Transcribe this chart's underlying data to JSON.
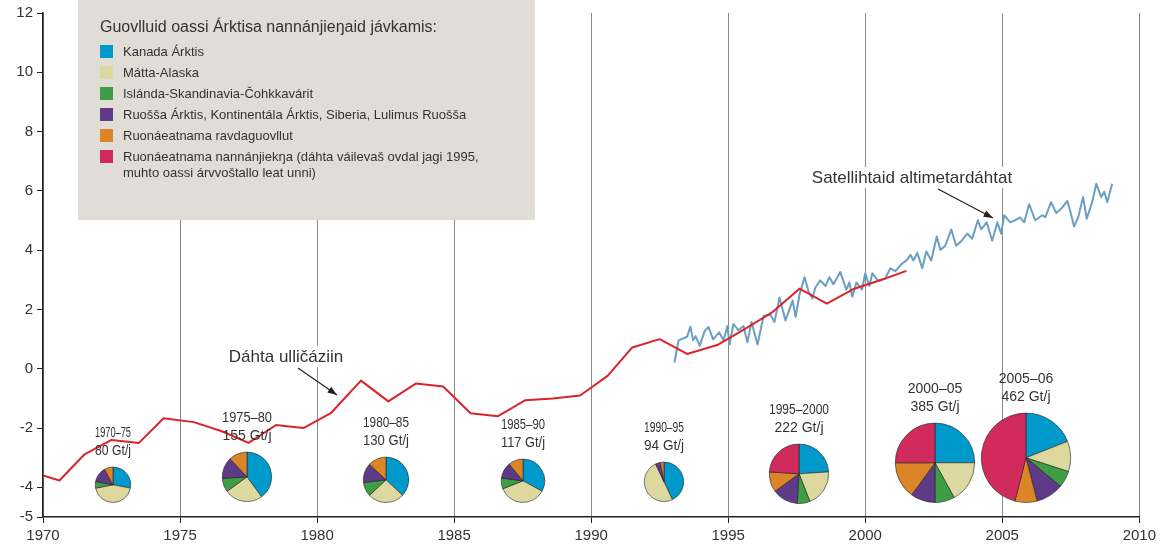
{
  "chart_data": [
    {
      "type": "line",
      "xlim": [
        1970,
        2010
      ],
      "xticks": [
        1970,
        1975,
        1980,
        1985,
        1990,
        1995,
        2000,
        2005,
        2010
      ],
      "ylim": [
        -5,
        12
      ],
      "yticks": [
        -5,
        -4,
        -2,
        0,
        2,
        4,
        6,
        8,
        10,
        12
      ],
      "grid": "x",
      "marker": "none",
      "line_style": "solid",
      "annotations": [
        "Dáhta ulličáziin",
        "Satellihtaid altimetardáhtat"
      ],
      "series": [
        {
          "color": "#d9242b",
          "x": [
            1970,
            1970.6,
            1971.5,
            1972.5,
            1973.5,
            1974.4,
            1975.5,
            1976.5,
            1977.5,
            1978.5,
            1979.5,
            1980.5,
            1981.6,
            1982.6,
            1983.6,
            1984.6,
            1985.6,
            1986.6,
            1987.6,
            1988.6,
            1989.6,
            1990.6,
            1991.5,
            1992.5,
            1993.5,
            1994.6,
            1995.6,
            1996.6,
            1997.6,
            1998.6,
            1999.6,
            2000.6,
            2001.5
          ],
          "values": [
            -3.6,
            -3.77,
            -2.9,
            -2.4,
            -2.5,
            -1.67,
            -1.8,
            -2.1,
            -2.5,
            -1.9,
            -2.0,
            -1.5,
            -0.4,
            -1.1,
            -0.5,
            -0.6,
            -1.5,
            -1.6,
            -1.06,
            -1.0,
            -0.9,
            -0.24,
            0.72,
            1.0,
            0.5,
            0.8,
            1.34,
            1.9,
            2.7,
            2.2,
            2.7,
            3.0,
            3.3
          ]
        },
        {
          "color": "#6a9fc3",
          "x": [
            1993.04,
            1993.19,
            1993.5,
            1993.62,
            1993.72,
            1993.81,
            1993.96,
            1994.14,
            1994.28,
            1994.45,
            1994.67,
            1994.83,
            1994.97,
            1995.05,
            1995.19,
            1995.37,
            1995.56,
            1995.7,
            1995.85,
            1996.07,
            1996.29,
            1996.54,
            1996.69,
            1996.87,
            1997.09,
            1997.35,
            1997.46,
            1997.61,
            1997.79,
            1997.93,
            1998.07,
            1998.18,
            1998.36,
            1998.55,
            1998.69,
            1998.84,
            1999.09,
            1999.31,
            1999.42,
            1999.53,
            1999.68,
            1999.88,
            2000.0,
            2000.15,
            2000.26,
            2000.46,
            2000.73,
            2000.92,
            2001.1,
            2001.32,
            2001.5,
            2001.65,
            2001.76,
            2001.9,
            2002.08,
            2002.23,
            2002.41,
            2002.61,
            2002.74,
            2002.92,
            2003.14,
            2003.32,
            2003.52,
            2003.72,
            2003.9,
            2004.11,
            2004.23,
            2004.43,
            2004.63,
            2004.82,
            2004.96,
            2005.07,
            2005.29,
            2005.47,
            2005.65,
            2005.8,
            2005.98,
            2006.2,
            2006.46,
            2006.57,
            2006.78,
            2006.97,
            2007.17,
            2007.37,
            2007.48,
            2007.62,
            2007.77,
            2007.95,
            2008.08,
            2008.28,
            2008.43,
            2008.61,
            2008.72,
            2008.83,
            2008.9,
            2009.01
          ],
          "values": [
            0.21,
            0.96,
            1.08,
            1.42,
            0.96,
            1.1,
            0.77,
            1.27,
            1.41,
            0.99,
            1.23,
            0.96,
            1.44,
            0.82,
            1.51,
            1.3,
            1.44,
            0.89,
            1.58,
            0.82,
            1.78,
            1.82,
            1.58,
            2.4,
            1.63,
            2.3,
            1.75,
            2.54,
            3.09,
            2.61,
            2.37,
            2.74,
            2.98,
            2.79,
            3.09,
            2.85,
            3.26,
            2.67,
            2.91,
            2.43,
            2.91,
            2.67,
            3.22,
            2.79,
            3.22,
            2.98,
            3.05,
            3.39,
            3.29,
            3.53,
            3.65,
            3.84,
            3.65,
            3.91,
            3.39,
            3.96,
            3.65,
            4.46,
            4.01,
            4.15,
            4.7,
            4.15,
            4.32,
            4.56,
            4.39,
            5.01,
            4.7,
            4.94,
            4.32,
            4.94,
            4.56,
            5.18,
            4.94,
            5.01,
            5.11,
            4.94,
            5.55,
            5.01,
            5.18,
            5.11,
            5.62,
            5.25,
            5.42,
            5.66,
            5.32,
            4.8,
            5.11,
            5.79,
            5.06,
            5.62,
            6.24,
            5.79,
            5.97,
            5.62,
            5.86,
            6.24
          ]
        }
      ]
    },
    {
      "type": "pie",
      "title": "1970–75",
      "subtitle": "80 Gt/j",
      "legend": "top right",
      "legend_title": "Guovlluid oassi Árktisa nannánjieŋaid jávkamis:",
      "categories": [
        "Kanada Árktis",
        "Mátta-Alaska",
        "Islánda-Skandinavia-Čohkkavárit",
        "Ruošša Árktis, Kontinentála Árktis, Siberia, Lulimus Ruošša",
        "Ruonáeatnama ravdaguovllut",
        "Ruonáeatnama nannánjiekŋa (dáhta váilevaš ovdal jagi 1995, muhto oassi árvvoštallo leat unni)"
      ],
      "colors": [
        "#0099cc",
        "#dcd8a0",
        "#3f9e45",
        "#5f3a86",
        "#dc8428",
        "#d12a5c"
      ],
      "values": [
        28,
        44,
        6,
        14,
        8,
        0
      ]
    },
    {
      "type": "pie",
      "title": "1975–80",
      "subtitle": "155 Gt/j",
      "categories": [
        null,
        null,
        null,
        null,
        null,
        null
      ],
      "colors": [
        "#0099cc",
        "#dcd8a0",
        "#3f9e45",
        "#5f3a86",
        "#dc8428",
        "#d12a5c"
      ],
      "values": [
        40,
        25,
        9,
        14,
        12,
        0
      ]
    },
    {
      "type": "pie",
      "title": "1980–85",
      "subtitle": "130 Gt/j",
      "categories": [
        null,
        null,
        null,
        null,
        null,
        null
      ],
      "colors": [
        "#0099cc",
        "#dcd8a0",
        "#3f9e45",
        "#5f3a86",
        "#dc8428",
        "#d12a5c"
      ],
      "values": [
        37,
        26,
        10,
        14,
        13,
        0
      ]
    },
    {
      "type": "pie",
      "title": "1985–90",
      "subtitle": "117 Gt/j",
      "categories": [
        null,
        null,
        null,
        null,
        null,
        null
      ],
      "colors": [
        "#0099cc",
        "#dcd8a0",
        "#3f9e45",
        "#5f3a86",
        "#dc8428",
        "#d12a5c"
      ],
      "values": [
        33,
        36,
        8,
        12,
        11,
        0
      ]
    },
    {
      "type": "pie",
      "title": "1990–95",
      "subtitle": "94 Gt/j",
      "categories": [
        null,
        null,
        null,
        null,
        null,
        null
      ],
      "colors": [
        "#0099cc",
        "#dcd8a0",
        "#3f9e45",
        "#5f3a86",
        "#dc8428",
        "#d12a5c"
      ],
      "values": [
        43,
        50,
        0,
        4,
        3,
        0
      ]
    },
    {
      "type": "pie",
      "title": "1995–2000",
      "subtitle": "222 Gt/j",
      "categories": [
        null,
        null,
        null,
        null,
        null,
        null
      ],
      "colors": [
        "#0099cc",
        "#dcd8a0",
        "#3f9e45",
        "#5f3a86",
        "#dc8428",
        "#d12a5c"
      ],
      "values": [
        24,
        20,
        7,
        14,
        11,
        24
      ]
    },
    {
      "type": "pie",
      "title": "2000–05",
      "subtitle": "385 Gt/j",
      "categories": [
        null,
        null,
        null,
        null,
        null,
        null
      ],
      "colors": [
        "#0099cc",
        "#dcd8a0",
        "#3f9e45",
        "#5f3a86",
        "#dc8428",
        "#d12a5c"
      ],
      "values": [
        25,
        17,
        8,
        10,
        15,
        25
      ]
    },
    {
      "type": "pie",
      "title": "2005–06",
      "subtitle": "462 Gt/j",
      "categories": [
        null,
        null,
        null,
        null,
        null,
        null
      ],
      "colors": [
        "#0099cc",
        "#dcd8a0",
        "#3f9e45",
        "#5f3a86",
        "#dc8428",
        "#d12a5c"
      ],
      "values": [
        19,
        11,
        6,
        10,
        8,
        46
      ]
    }
  ]
}
